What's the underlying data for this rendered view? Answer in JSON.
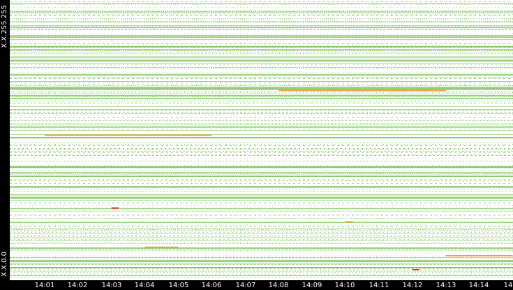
{
  "chart_data": {
    "type": "heatmap",
    "title": "",
    "xlabel": "",
    "ylabel": "",
    "x_tick_labels": [
      "14:01",
      "14:02",
      "14:03",
      "14:04",
      "14:05",
      "14:06",
      "14:07",
      "14:08",
      "14:09",
      "14:10",
      "14:11",
      "14:12",
      "14:13",
      "14:14",
      "14"
    ],
    "y_tick_labels": [
      "X.X.255.255",
      "X.X.0.0"
    ],
    "y_range": [
      "X.X.0.0",
      "X.X.255.255"
    ],
    "x_range": [
      "14:00",
      "14:15"
    ],
    "colors": {
      "low": "#7cc35a",
      "medium": "#e8a33c",
      "high": "#d83a2a",
      "background": "#ffffff",
      "axis_background": "#000000",
      "axis_text": "#ffffff"
    },
    "highlights": [
      {
        "level": "medium",
        "time_start": "14:01",
        "time_end": "14:06",
        "row_fraction": 0.52
      },
      {
        "level": "medium",
        "time_start": "14:08",
        "time_end": "14:13",
        "row_fraction": 0.68
      },
      {
        "level": "medium",
        "time_start": "14:13",
        "time_end": "14:15",
        "row_fraction": 0.09
      },
      {
        "level": "high",
        "time_start": "14:03",
        "time_end": "14:03",
        "row_fraction": 0.26
      },
      {
        "level": "medium",
        "time_start": "14:10",
        "time_end": "14:10",
        "row_fraction": 0.21
      },
      {
        "level": "high",
        "time_start": "14:12",
        "time_end": "14:12",
        "row_fraction": 0.04
      },
      {
        "level": "medium",
        "time_start": "14:04",
        "time_end": "14:05",
        "row_fraction": 0.12
      }
    ]
  }
}
